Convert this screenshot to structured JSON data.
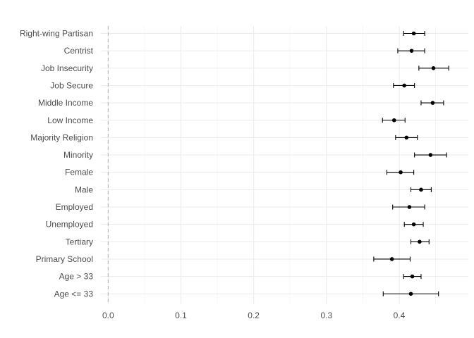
{
  "chart_data": {
    "type": "scatter",
    "title": "",
    "xlabel": "",
    "ylabel": "",
    "xlim": [
      -0.01,
      0.495
    ],
    "x_ticks": [
      0.0,
      0.1,
      0.2,
      0.3,
      0.4
    ],
    "x_tick_labels": [
      "0.0",
      "0.1",
      "0.2",
      "0.3",
      "0.4"
    ],
    "reference_line": {
      "x": 0.0,
      "style": "dashed"
    },
    "grid": true,
    "legend": "none",
    "categories": [
      "Right-wing Partisan",
      "Centrist",
      "Job Insecurity",
      "Job Secure",
      "Middle Income",
      "Low Income",
      "Majority Religion",
      "Minority",
      "Female",
      "Male",
      "Employed",
      "Unemployed",
      "Tertiary",
      "Primary School",
      "Age > 33",
      "Age <= 33"
    ],
    "estimates": [
      0.42,
      0.417,
      0.447,
      0.407,
      0.446,
      0.393,
      0.41,
      0.443,
      0.402,
      0.43,
      0.414,
      0.42,
      0.428,
      0.39,
      0.418,
      0.416
    ],
    "ci_low": [
      0.406,
      0.398,
      0.427,
      0.392,
      0.43,
      0.377,
      0.395,
      0.421,
      0.383,
      0.416,
      0.391,
      0.407,
      0.416,
      0.365,
      0.406,
      0.378
    ],
    "ci_high": [
      0.435,
      0.435,
      0.468,
      0.421,
      0.461,
      0.408,
      0.425,
      0.465,
      0.42,
      0.444,
      0.435,
      0.433,
      0.441,
      0.415,
      0.43,
      0.454
    ]
  }
}
